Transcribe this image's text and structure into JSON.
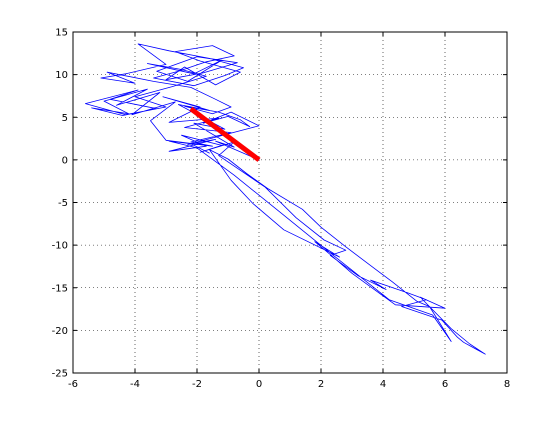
{
  "chart_data": {
    "type": "line",
    "title": "",
    "xlabel": "",
    "ylabel": "",
    "xlim": [
      -6,
      8
    ],
    "ylim": [
      -25,
      15
    ],
    "xticks": [
      -6,
      -4,
      -2,
      0,
      2,
      4,
      6,
      8
    ],
    "yticks": [
      -25,
      -20,
      -15,
      -10,
      -5,
      0,
      5,
      10,
      15
    ],
    "xtick_labels": [
      "-6",
      "-4",
      "-2",
      "0",
      "2",
      "4",
      "6",
      "8"
    ],
    "ytick_labels": [
      "-25",
      "-20",
      "-15",
      "-10",
      "-5",
      "0",
      "5",
      "10",
      "15"
    ],
    "grid": true,
    "grid_style": "dotted",
    "legend": "none",
    "series": [
      {
        "color": "#0000ff",
        "x": [
          0,
          -1.4,
          -0.8,
          -2.1,
          -1.1,
          -2.6,
          -1.6,
          -3.1,
          -1.9,
          -2.9,
          -1.3,
          -2.4,
          -0.9,
          -2.2,
          -1.5,
          -3.0,
          -3.5,
          -2.7,
          -4.1,
          -3.2,
          -4.6,
          -3.6,
          -5.0,
          -4.2,
          -5.4,
          -4.4,
          -3.3,
          -4.8,
          -3.9,
          -5.6,
          -4.3,
          -3.0,
          -4.0,
          -2.8,
          -1.7,
          -2.5,
          -3.6,
          -2.1,
          -1.2,
          -2.3,
          -3.3,
          -2.0,
          -0.7,
          -1.8,
          -3.0,
          -2.4,
          -1.4,
          -0.6,
          -1.9,
          -2.7,
          -1.5,
          -0.8,
          -1.7,
          -2.6,
          -3.4,
          -2.1,
          -1.1,
          -0.5,
          -1.6,
          -2.9,
          -3.9,
          -3.0,
          -4.3,
          -5.1,
          -4.0,
          -4.9,
          -3.4,
          -2.2,
          -1.4,
          -0.9,
          -1.5,
          -2.4,
          -1.3,
          -0.6,
          -0.3,
          -1.0,
          -1.8,
          -0.9,
          0.0,
          -2.3,
          -1.4,
          -2.9,
          -1.7,
          -2.5,
          -1.2,
          -1.9,
          -0.8,
          -1.3,
          0.2,
          1.2,
          2.1,
          2.8,
          2.3,
          3.2,
          4.1,
          3.6,
          4.8,
          5.4,
          4.6,
          5.9,
          6.1,
          6.4,
          6.6,
          7.0,
          7.3,
          6.8,
          6.2,
          5.2,
          6.0,
          4.4,
          3.0,
          2.2,
          1.8,
          2.6,
          0.8,
          -0.2,
          -0.9,
          -1.6,
          -1.0,
          -0.4,
          0.3,
          1.4,
          2.0,
          2.8,
          3.6,
          4.3,
          5.1,
          5.5,
          6.2,
          5.6,
          4.2,
          2.4,
          0.6,
          -0.8,
          -2.0,
          -2.9,
          -2.2,
          -1.6
        ],
        "y": [
          0,
          2.2,
          1.5,
          4.3,
          3.6,
          6.5,
          5.8,
          7.4,
          6.2,
          4.4,
          4.9,
          3.8,
          3.2,
          2.1,
          1.6,
          2.3,
          4.6,
          6.8,
          5.3,
          7.9,
          6.4,
          8.3,
          6.9,
          5.4,
          6.1,
          5.2,
          6.0,
          7.1,
          8.2,
          6.6,
          5.3,
          6.2,
          7.4,
          8.6,
          9.8,
          10.6,
          11.3,
          10.1,
          11.7,
          9.2,
          10.4,
          12.1,
          11.4,
          10.2,
          9.4,
          10.9,
          8.8,
          10.3,
          11.6,
          12.7,
          13.4,
          12.2,
          11.5,
          10.4,
          9.6,
          8.7,
          9.9,
          10.8,
          11.9,
          12.8,
          13.6,
          11.2,
          10.1,
          9.6,
          9.0,
          10.3,
          9.2,
          8.5,
          7.1,
          6.2,
          5.4,
          6.3,
          5.6,
          4.7,
          3.9,
          5.1,
          4.3,
          5.6,
          4.0,
          1.8,
          2.4,
          1.0,
          1.6,
          2.9,
          1.7,
          0.9,
          2.1,
          0.5,
          -3.2,
          -6.8,
          -9.4,
          -10.6,
          -11.2,
          -13.6,
          -15.2,
          -14.1,
          -15.6,
          -16.4,
          -17.2,
          -18.8,
          -19.6,
          -20.8,
          -21.4,
          -22.2,
          -22.8,
          -21.6,
          -19.8,
          -16.1,
          -17.4,
          -17.0,
          -13.3,
          -10.8,
          -9.6,
          -11.4,
          -8.2,
          -5.1,
          -2.4,
          1.2,
          0.1,
          -1.6,
          -3.4,
          -5.8,
          -7.9,
          -10.2,
          -12.4,
          -14.3,
          -16.6,
          -17.2,
          -21.3,
          -18.2,
          -16.4,
          -11.2,
          -5.9,
          -1.8,
          1.4,
          2.2,
          1.9,
          0.8
        ]
      },
      {
        "color": "#ff0000",
        "x": [
          0,
          -2.2
        ],
        "y": [
          0,
          6.0
        ]
      }
    ]
  }
}
